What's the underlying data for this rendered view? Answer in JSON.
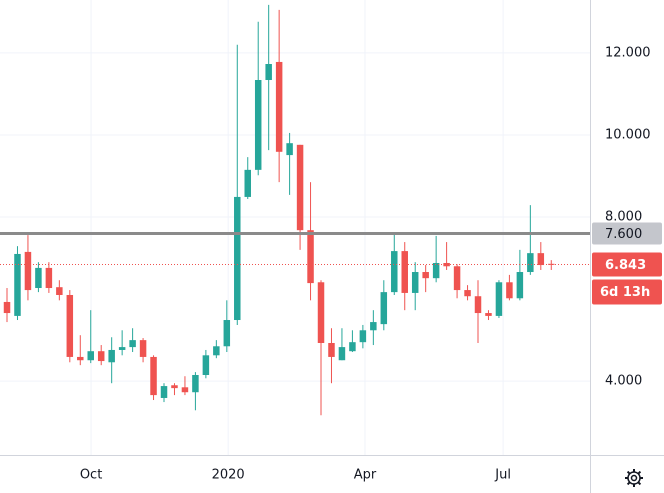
{
  "chart_data": {
    "type": "candlestick",
    "open": [
      5.93,
      5.59,
      7.15,
      6.27,
      6.76,
      6.29,
      6.1,
      4.59,
      4.51,
      4.73,
      4.46,
      4.76,
      4.83,
      5.0,
      4.59,
      3.59,
      3.9,
      3.85,
      3.73,
      4.15,
      4.63,
      4.85,
      5.49,
      8.49,
      9.15,
      11.34,
      11.78,
      9.51,
      9.76,
      7.68,
      6.41,
      4.93,
      4.51,
      4.73,
      4.95,
      5.24,
      5.39,
      6.17,
      7.17,
      6.15,
      6.66,
      6.51,
      6.88,
      6.8,
      6.22,
      6.07,
      5.66,
      5.59,
      6.41,
      6.02,
      6.66,
      7.12,
      6.86
    ],
    "high": [
      6.27,
      7.29,
      7.56,
      6.9,
      6.9,
      6.46,
      6.22,
      5.12,
      5.73,
      4.88,
      5.07,
      5.24,
      5.29,
      5.05,
      4.63,
      3.95,
      3.95,
      4.12,
      4.22,
      4.76,
      5.0,
      5.97,
      12.2,
      9.46,
      12.76,
      13.17,
      13.05,
      10.05,
      9.76,
      8.85,
      6.46,
      5.29,
      5.29,
      5.24,
      5.37,
      5.73,
      6.46,
      7.63,
      7.39,
      6.9,
      6.83,
      7.54,
      7.39,
      6.85,
      6.34,
      6.46,
      5.73,
      6.46,
      6.59,
      7.2,
      8.29,
      7.39,
      6.95
    ],
    "low": [
      5.44,
      5.49,
      5.97,
      6.17,
      6.15,
      5.97,
      4.46,
      4.39,
      4.44,
      4.39,
      3.95,
      4.63,
      4.71,
      4.46,
      3.54,
      3.49,
      3.66,
      3.66,
      3.29,
      4.07,
      4.56,
      4.71,
      5.37,
      8.44,
      9.02,
      9.63,
      8.85,
      8.54,
      7.2,
      5.97,
      3.17,
      3.95,
      4.51,
      4.71,
      4.8,
      4.88,
      5.24,
      6.1,
      5.73,
      5.73,
      6.17,
      6.41,
      6.71,
      6.02,
      5.97,
      4.93,
      5.49,
      5.54,
      5.97,
      5.97,
      6.59,
      6.71,
      6.71
    ],
    "close": [
      5.66,
      7.1,
      6.22,
      6.76,
      6.27,
      6.1,
      4.59,
      4.51,
      4.73,
      4.49,
      4.76,
      4.83,
      5.0,
      4.59,
      3.66,
      3.88,
      3.83,
      3.73,
      4.15,
      4.63,
      4.85,
      5.49,
      8.49,
      9.15,
      11.34,
      11.73,
      9.59,
      9.8,
      7.68,
      6.39,
      4.93,
      4.59,
      4.83,
      4.95,
      5.24,
      5.44,
      6.17,
      7.17,
      6.15,
      6.66,
      6.51,
      6.88,
      6.8,
      6.22,
      6.07,
      5.66,
      5.59,
      6.41,
      6.02,
      6.66,
      7.12,
      6.83,
      6.843
    ],
    "up_color": "#26a69a",
    "down_color": "#ef5350",
    "xlim": [
      -0.67,
      55.7
    ],
    "xticks": [
      {
        "value": 8.03,
        "label": "Oct"
      },
      {
        "value": 21.13,
        "label": "2020"
      },
      {
        "value": 34.2,
        "label": "Apr"
      },
      {
        "value": 47.4,
        "label": "Jul"
      }
    ],
    "ylim": [
      2.2,
      13.29
    ],
    "yticks": [
      {
        "value": 4,
        "label": "4.000"
      },
      {
        "value": 8,
        "label": "8.000"
      },
      {
        "value": 10,
        "label": "10.000"
      },
      {
        "value": 12,
        "label": "12.000"
      }
    ],
    "grid": true,
    "horizontal_line": {
      "value": 7.6,
      "label": "7.600",
      "color": "#8a8a8a"
    },
    "last_price": {
      "value": 6.843,
      "label": "6.843"
    },
    "countdown": "6d 13h"
  }
}
